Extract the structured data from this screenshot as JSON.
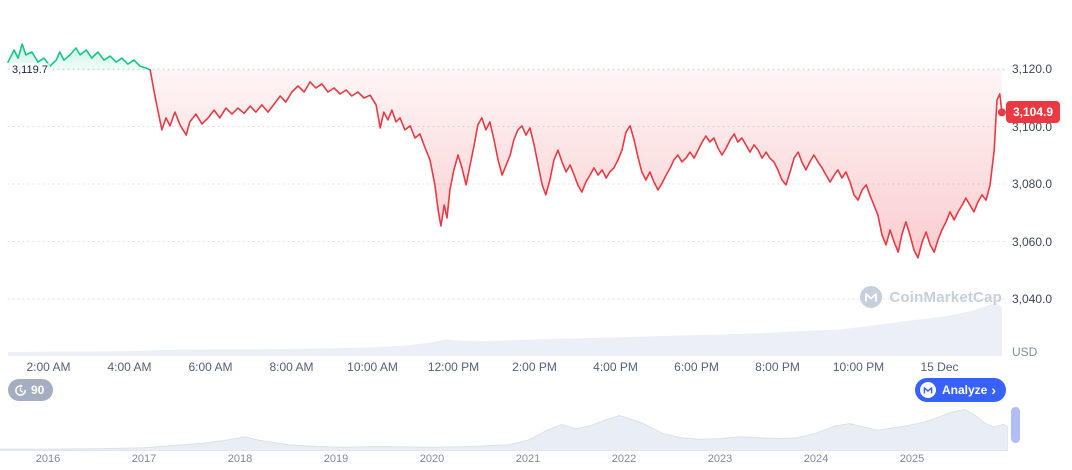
{
  "chart": {
    "baseline_label": "3,119.7",
    "baseline_value": 3119.7,
    "current_price_label": "3,104.9",
    "current_price_value": 3104.9,
    "usd_label": "USD",
    "y_ticks": [
      {
        "label": "3,120.0",
        "value": 3120
      },
      {
        "label": "3,100.0",
        "value": 3100
      },
      {
        "label": "3,080.0",
        "value": 3080
      },
      {
        "label": "3,060.0",
        "value": 3060
      },
      {
        "label": "3,040.0",
        "value": 3040
      }
    ],
    "x_ticks": [
      {
        "label": "2:00 AM",
        "hour": 2
      },
      {
        "label": "4:00 AM",
        "hour": 4
      },
      {
        "label": "6:00 AM",
        "hour": 6
      },
      {
        "label": "8:00 AM",
        "hour": 8
      },
      {
        "label": "10:00 AM",
        "hour": 10
      },
      {
        "label": "12:00 PM",
        "hour": 12
      },
      {
        "label": "2:00 PM",
        "hour": 14
      },
      {
        "label": "4:00 PM",
        "hour": 16
      },
      {
        "label": "6:00 PM",
        "hour": 18
      },
      {
        "label": "8:00 PM",
        "hour": 20
      },
      {
        "label": "10:00 PM",
        "hour": 22
      },
      {
        "label": "15 Dec",
        "hour": 24
      }
    ]
  },
  "toolbar": {
    "history_count": "90",
    "analyze_label": "Analyze",
    "analyze_chevron": "›"
  },
  "watermark": {
    "text": "CoinMarketCap"
  },
  "minimap": {
    "years": [
      {
        "label": "2016",
        "year": 2016
      },
      {
        "label": "2017",
        "year": 2017
      },
      {
        "label": "2018",
        "year": 2018
      },
      {
        "label": "2019",
        "year": 2019
      },
      {
        "label": "2020",
        "year": 2020
      },
      {
        "label": "2021",
        "year": 2021
      },
      {
        "label": "2022",
        "year": 2022
      },
      {
        "label": "2023",
        "year": 2023
      },
      {
        "label": "2024",
        "year": 2024
      },
      {
        "label": "2025",
        "year": 2025
      }
    ]
  },
  "colors": {
    "up": "#16c784",
    "down": "#ea3943",
    "accent_blue": "#3861fb",
    "badge_gray": "#a5aec0",
    "grid": "#d9dfe9"
  },
  "chart_data": [
    {
      "type": "line",
      "name": "price_last_24h_usd",
      "x_unit": "hour_of_day",
      "x_range": [
        1,
        25.6
      ],
      "ylim": [
        3035,
        3130
      ],
      "baseline_open": 3119.7,
      "last_price": 3104.9,
      "up_color": "#16c784",
      "down_color": "#ea3943",
      "points": [
        [
          1.0,
          3122.4
        ],
        [
          1.15,
          3126.6
        ],
        [
          1.25,
          3123.8
        ],
        [
          1.35,
          3128.7
        ],
        [
          1.44,
          3124.9
        ],
        [
          1.59,
          3125.9
        ],
        [
          1.74,
          3122.4
        ],
        [
          1.89,
          3123.8
        ],
        [
          2.04,
          3121.0
        ],
        [
          2.19,
          3123.1
        ],
        [
          2.28,
          3125.9
        ],
        [
          2.38,
          3123.1
        ],
        [
          2.53,
          3124.9
        ],
        [
          2.68,
          3127.3
        ],
        [
          2.78,
          3124.9
        ],
        [
          2.93,
          3126.6
        ],
        [
          3.07,
          3123.8
        ],
        [
          3.22,
          3125.9
        ],
        [
          3.37,
          3123.1
        ],
        [
          3.52,
          3124.5
        ],
        [
          3.67,
          3122.4
        ],
        [
          3.81,
          3123.8
        ],
        [
          3.96,
          3121.7
        ],
        [
          4.11,
          3123.1
        ],
        [
          4.26,
          3121.0
        ],
        [
          4.41,
          3120.3
        ],
        [
          4.51,
          3119.7
        ],
        [
          4.6,
          3112.7
        ],
        [
          4.7,
          3105.7
        ],
        [
          4.8,
          3098.8
        ],
        [
          4.9,
          3103.0
        ],
        [
          5.0,
          3100.2
        ],
        [
          5.12,
          3105.0
        ],
        [
          5.25,
          3100.5
        ],
        [
          5.4,
          3097.0
        ],
        [
          5.49,
          3101.6
        ],
        [
          5.64,
          3104.3
        ],
        [
          5.79,
          3100.9
        ],
        [
          5.94,
          3103.0
        ],
        [
          6.09,
          3105.7
        ],
        [
          6.23,
          3103.0
        ],
        [
          6.38,
          3106.4
        ],
        [
          6.53,
          3104.3
        ],
        [
          6.68,
          3106.4
        ],
        [
          6.83,
          3104.6
        ],
        [
          6.98,
          3107.1
        ],
        [
          7.12,
          3105.0
        ],
        [
          7.27,
          3107.5
        ],
        [
          7.42,
          3105.0
        ],
        [
          7.57,
          3107.8
        ],
        [
          7.72,
          3110.6
        ],
        [
          7.86,
          3108.5
        ],
        [
          8.01,
          3112.0
        ],
        [
          8.16,
          3114.1
        ],
        [
          8.31,
          3112.0
        ],
        [
          8.46,
          3115.5
        ],
        [
          8.6,
          3113.4
        ],
        [
          8.75,
          3114.8
        ],
        [
          8.9,
          3112.0
        ],
        [
          9.05,
          3113.4
        ],
        [
          9.2,
          3111.3
        ],
        [
          9.35,
          3112.7
        ],
        [
          9.49,
          3110.6
        ],
        [
          9.64,
          3112.0
        ],
        [
          9.79,
          3109.9
        ],
        [
          9.94,
          3110.9
        ],
        [
          10.09,
          3107.5
        ],
        [
          10.19,
          3099.5
        ],
        [
          10.28,
          3105.0
        ],
        [
          10.38,
          3102.3
        ],
        [
          10.48,
          3105.7
        ],
        [
          10.58,
          3101.6
        ],
        [
          10.68,
          3103.0
        ],
        [
          10.8,
          3098.8
        ],
        [
          10.93,
          3100.2
        ],
        [
          11.05,
          3096.0
        ],
        [
          11.17,
          3097.4
        ],
        [
          11.3,
          3092.5
        ],
        [
          11.42,
          3088.3
        ],
        [
          11.54,
          3079.7
        ],
        [
          11.62,
          3071.0
        ],
        [
          11.69,
          3065.4
        ],
        [
          11.77,
          3072.7
        ],
        [
          11.84,
          3068.2
        ],
        [
          11.91,
          3077.9
        ],
        [
          12.01,
          3084.9
        ],
        [
          12.11,
          3090.1
        ],
        [
          12.21,
          3085.6
        ],
        [
          12.31,
          3079.7
        ],
        [
          12.41,
          3086.6
        ],
        [
          12.51,
          3093.6
        ],
        [
          12.6,
          3100.5
        ],
        [
          12.7,
          3103.0
        ],
        [
          12.8,
          3098.8
        ],
        [
          12.9,
          3101.6
        ],
        [
          13.0,
          3095.3
        ],
        [
          13.1,
          3088.3
        ],
        [
          13.2,
          3083.1
        ],
        [
          13.3,
          3086.6
        ],
        [
          13.4,
          3090.1
        ],
        [
          13.49,
          3095.3
        ],
        [
          13.59,
          3098.8
        ],
        [
          13.69,
          3100.2
        ],
        [
          13.79,
          3097.0
        ],
        [
          13.89,
          3099.5
        ],
        [
          13.99,
          3093.6
        ],
        [
          14.09,
          3086.6
        ],
        [
          14.19,
          3079.7
        ],
        [
          14.28,
          3076.2
        ],
        [
          14.38,
          3081.4
        ],
        [
          14.48,
          3088.3
        ],
        [
          14.58,
          3091.8
        ],
        [
          14.68,
          3087.7
        ],
        [
          14.78,
          3084.2
        ],
        [
          14.88,
          3086.6
        ],
        [
          14.98,
          3083.1
        ],
        [
          15.07,
          3079.7
        ],
        [
          15.17,
          3077.2
        ],
        [
          15.27,
          3080.7
        ],
        [
          15.37,
          3083.1
        ],
        [
          15.47,
          3085.6
        ],
        [
          15.57,
          3083.1
        ],
        [
          15.67,
          3084.9
        ],
        [
          15.77,
          3082.1
        ],
        [
          15.86,
          3084.2
        ],
        [
          15.96,
          3085.6
        ],
        [
          16.06,
          3088.3
        ],
        [
          16.16,
          3091.8
        ],
        [
          16.26,
          3098.1
        ],
        [
          16.36,
          3100.2
        ],
        [
          16.46,
          3095.3
        ],
        [
          16.56,
          3089.0
        ],
        [
          16.65,
          3084.2
        ],
        [
          16.75,
          3081.4
        ],
        [
          16.85,
          3084.2
        ],
        [
          16.95,
          3080.7
        ],
        [
          17.05,
          3077.9
        ],
        [
          17.15,
          3080.3
        ],
        [
          17.25,
          3083.1
        ],
        [
          17.35,
          3085.6
        ],
        [
          17.44,
          3088.3
        ],
        [
          17.54,
          3090.1
        ],
        [
          17.64,
          3087.7
        ],
        [
          17.74,
          3089.0
        ],
        [
          17.84,
          3091.1
        ],
        [
          17.94,
          3089.0
        ],
        [
          18.04,
          3091.8
        ],
        [
          18.14,
          3094.6
        ],
        [
          18.23,
          3096.7
        ],
        [
          18.33,
          3094.6
        ],
        [
          18.43,
          3096.0
        ],
        [
          18.53,
          3092.5
        ],
        [
          18.63,
          3090.1
        ],
        [
          18.73,
          3092.5
        ],
        [
          18.83,
          3095.3
        ],
        [
          18.93,
          3097.4
        ],
        [
          19.02,
          3094.6
        ],
        [
          19.12,
          3096.0
        ],
        [
          19.22,
          3093.6
        ],
        [
          19.32,
          3091.1
        ],
        [
          19.42,
          3093.6
        ],
        [
          19.52,
          3091.8
        ],
        [
          19.62,
          3089.0
        ],
        [
          19.72,
          3091.1
        ],
        [
          19.81,
          3089.0
        ],
        [
          19.91,
          3087.7
        ],
        [
          20.01,
          3084.9
        ],
        [
          20.11,
          3081.4
        ],
        [
          20.21,
          3079.7
        ],
        [
          20.31,
          3084.2
        ],
        [
          20.41,
          3089.0
        ],
        [
          20.51,
          3091.1
        ],
        [
          20.6,
          3087.7
        ],
        [
          20.7,
          3084.9
        ],
        [
          20.8,
          3087.7
        ],
        [
          20.9,
          3090.1
        ],
        [
          21.0,
          3087.7
        ],
        [
          21.1,
          3085.6
        ],
        [
          21.2,
          3083.1
        ],
        [
          21.3,
          3080.7
        ],
        [
          21.4,
          3083.1
        ],
        [
          21.49,
          3084.9
        ],
        [
          21.59,
          3082.1
        ],
        [
          21.69,
          3084.2
        ],
        [
          21.79,
          3080.7
        ],
        [
          21.89,
          3076.2
        ],
        [
          21.99,
          3074.4
        ],
        [
          22.09,
          3077.9
        ],
        [
          22.19,
          3079.7
        ],
        [
          22.28,
          3076.2
        ],
        [
          22.38,
          3072.7
        ],
        [
          22.48,
          3069.2
        ],
        [
          22.58,
          3062.3
        ],
        [
          22.68,
          3058.8
        ],
        [
          22.78,
          3064.0
        ],
        [
          22.88,
          3059.8
        ],
        [
          22.98,
          3056.3
        ],
        [
          23.07,
          3062.3
        ],
        [
          23.17,
          3066.8
        ],
        [
          23.27,
          3062.3
        ],
        [
          23.37,
          3057.0
        ],
        [
          23.47,
          3054.3
        ],
        [
          23.57,
          3059.8
        ],
        [
          23.67,
          3063.3
        ],
        [
          23.77,
          3058.8
        ],
        [
          23.87,
          3056.3
        ],
        [
          23.96,
          3060.5
        ],
        [
          24.06,
          3064.0
        ],
        [
          24.16,
          3066.8
        ],
        [
          24.26,
          3070.3
        ],
        [
          24.36,
          3067.5
        ],
        [
          24.46,
          3070.3
        ],
        [
          24.56,
          3072.7
        ],
        [
          24.65,
          3075.1
        ],
        [
          24.75,
          3072.7
        ],
        [
          24.85,
          3070.3
        ],
        [
          24.95,
          3073.8
        ],
        [
          25.05,
          3076.2
        ],
        [
          25.15,
          3074.4
        ],
        [
          25.25,
          3079.7
        ],
        [
          25.35,
          3091.8
        ],
        [
          25.42,
          3109.2
        ],
        [
          25.49,
          3111.3
        ],
        [
          25.54,
          3104.9
        ]
      ]
    },
    {
      "type": "area",
      "name": "volume_profile",
      "x_unit": "hour_of_day",
      "yrange": [
        0,
        1
      ],
      "points": [
        [
          1,
          0.07
        ],
        [
          2,
          0.08
        ],
        [
          3,
          0.08
        ],
        [
          4,
          0.09
        ],
        [
          5,
          0.11
        ],
        [
          6,
          0.12
        ],
        [
          7,
          0.12
        ],
        [
          8,
          0.13
        ],
        [
          9,
          0.14
        ],
        [
          10,
          0.16
        ],
        [
          10.8,
          0.19
        ],
        [
          11.4,
          0.24
        ],
        [
          11.8,
          0.3
        ],
        [
          12.2,
          0.28
        ],
        [
          12.8,
          0.27
        ],
        [
          13.5,
          0.29
        ],
        [
          14.5,
          0.31
        ],
        [
          15.5,
          0.33
        ],
        [
          16.5,
          0.35
        ],
        [
          17.5,
          0.37
        ],
        [
          18.5,
          0.39
        ],
        [
          19.5,
          0.41
        ],
        [
          20.5,
          0.45
        ],
        [
          21.5,
          0.48
        ],
        [
          22.3,
          0.55
        ],
        [
          23,
          0.62
        ],
        [
          23.7,
          0.68
        ],
        [
          24.3,
          0.74
        ],
        [
          24.8,
          0.82
        ],
        [
          25.2,
          0.92
        ],
        [
          25.4,
          0.97
        ],
        [
          25.54,
          0.88
        ]
      ]
    },
    {
      "type": "area",
      "name": "price_history_minimap_2016_2025",
      "x_unit": "year",
      "x_range": [
        2015.5,
        2026
      ],
      "yrange": [
        0,
        1
      ],
      "points": [
        [
          2015.5,
          0.02
        ],
        [
          2016,
          0.02
        ],
        [
          2016.5,
          0.03
        ],
        [
          2017,
          0.05
        ],
        [
          2017.3,
          0.1
        ],
        [
          2017.6,
          0.15
        ],
        [
          2017.85,
          0.22
        ],
        [
          2018.05,
          0.3
        ],
        [
          2018.2,
          0.22
        ],
        [
          2018.5,
          0.12
        ],
        [
          2018.8,
          0.08
        ],
        [
          2019.1,
          0.06
        ],
        [
          2019.4,
          0.08
        ],
        [
          2019.7,
          0.07
        ],
        [
          2020,
          0.06
        ],
        [
          2020.4,
          0.08
        ],
        [
          2020.8,
          0.12
        ],
        [
          2021,
          0.22
        ],
        [
          2021.2,
          0.45
        ],
        [
          2021.35,
          0.58
        ],
        [
          2021.5,
          0.48
        ],
        [
          2021.65,
          0.55
        ],
        [
          2021.8,
          0.68
        ],
        [
          2021.95,
          0.78
        ],
        [
          2022.05,
          0.72
        ],
        [
          2022.2,
          0.6
        ],
        [
          2022.4,
          0.38
        ],
        [
          2022.6,
          0.28
        ],
        [
          2022.8,
          0.24
        ],
        [
          2023,
          0.26
        ],
        [
          2023.2,
          0.3
        ],
        [
          2023.4,
          0.28
        ],
        [
          2023.6,
          0.26
        ],
        [
          2023.8,
          0.28
        ],
        [
          2024,
          0.38
        ],
        [
          2024.2,
          0.55
        ],
        [
          2024.35,
          0.6
        ],
        [
          2024.5,
          0.52
        ],
        [
          2024.65,
          0.45
        ],
        [
          2024.8,
          0.5
        ],
        [
          2024.95,
          0.55
        ],
        [
          2025.1,
          0.62
        ],
        [
          2025.25,
          0.72
        ],
        [
          2025.4,
          0.85
        ],
        [
          2025.55,
          0.92
        ],
        [
          2025.65,
          0.8
        ],
        [
          2025.75,
          0.62
        ],
        [
          2025.85,
          0.52
        ],
        [
          2025.95,
          0.58
        ],
        [
          2026,
          0.52
        ]
      ]
    }
  ]
}
